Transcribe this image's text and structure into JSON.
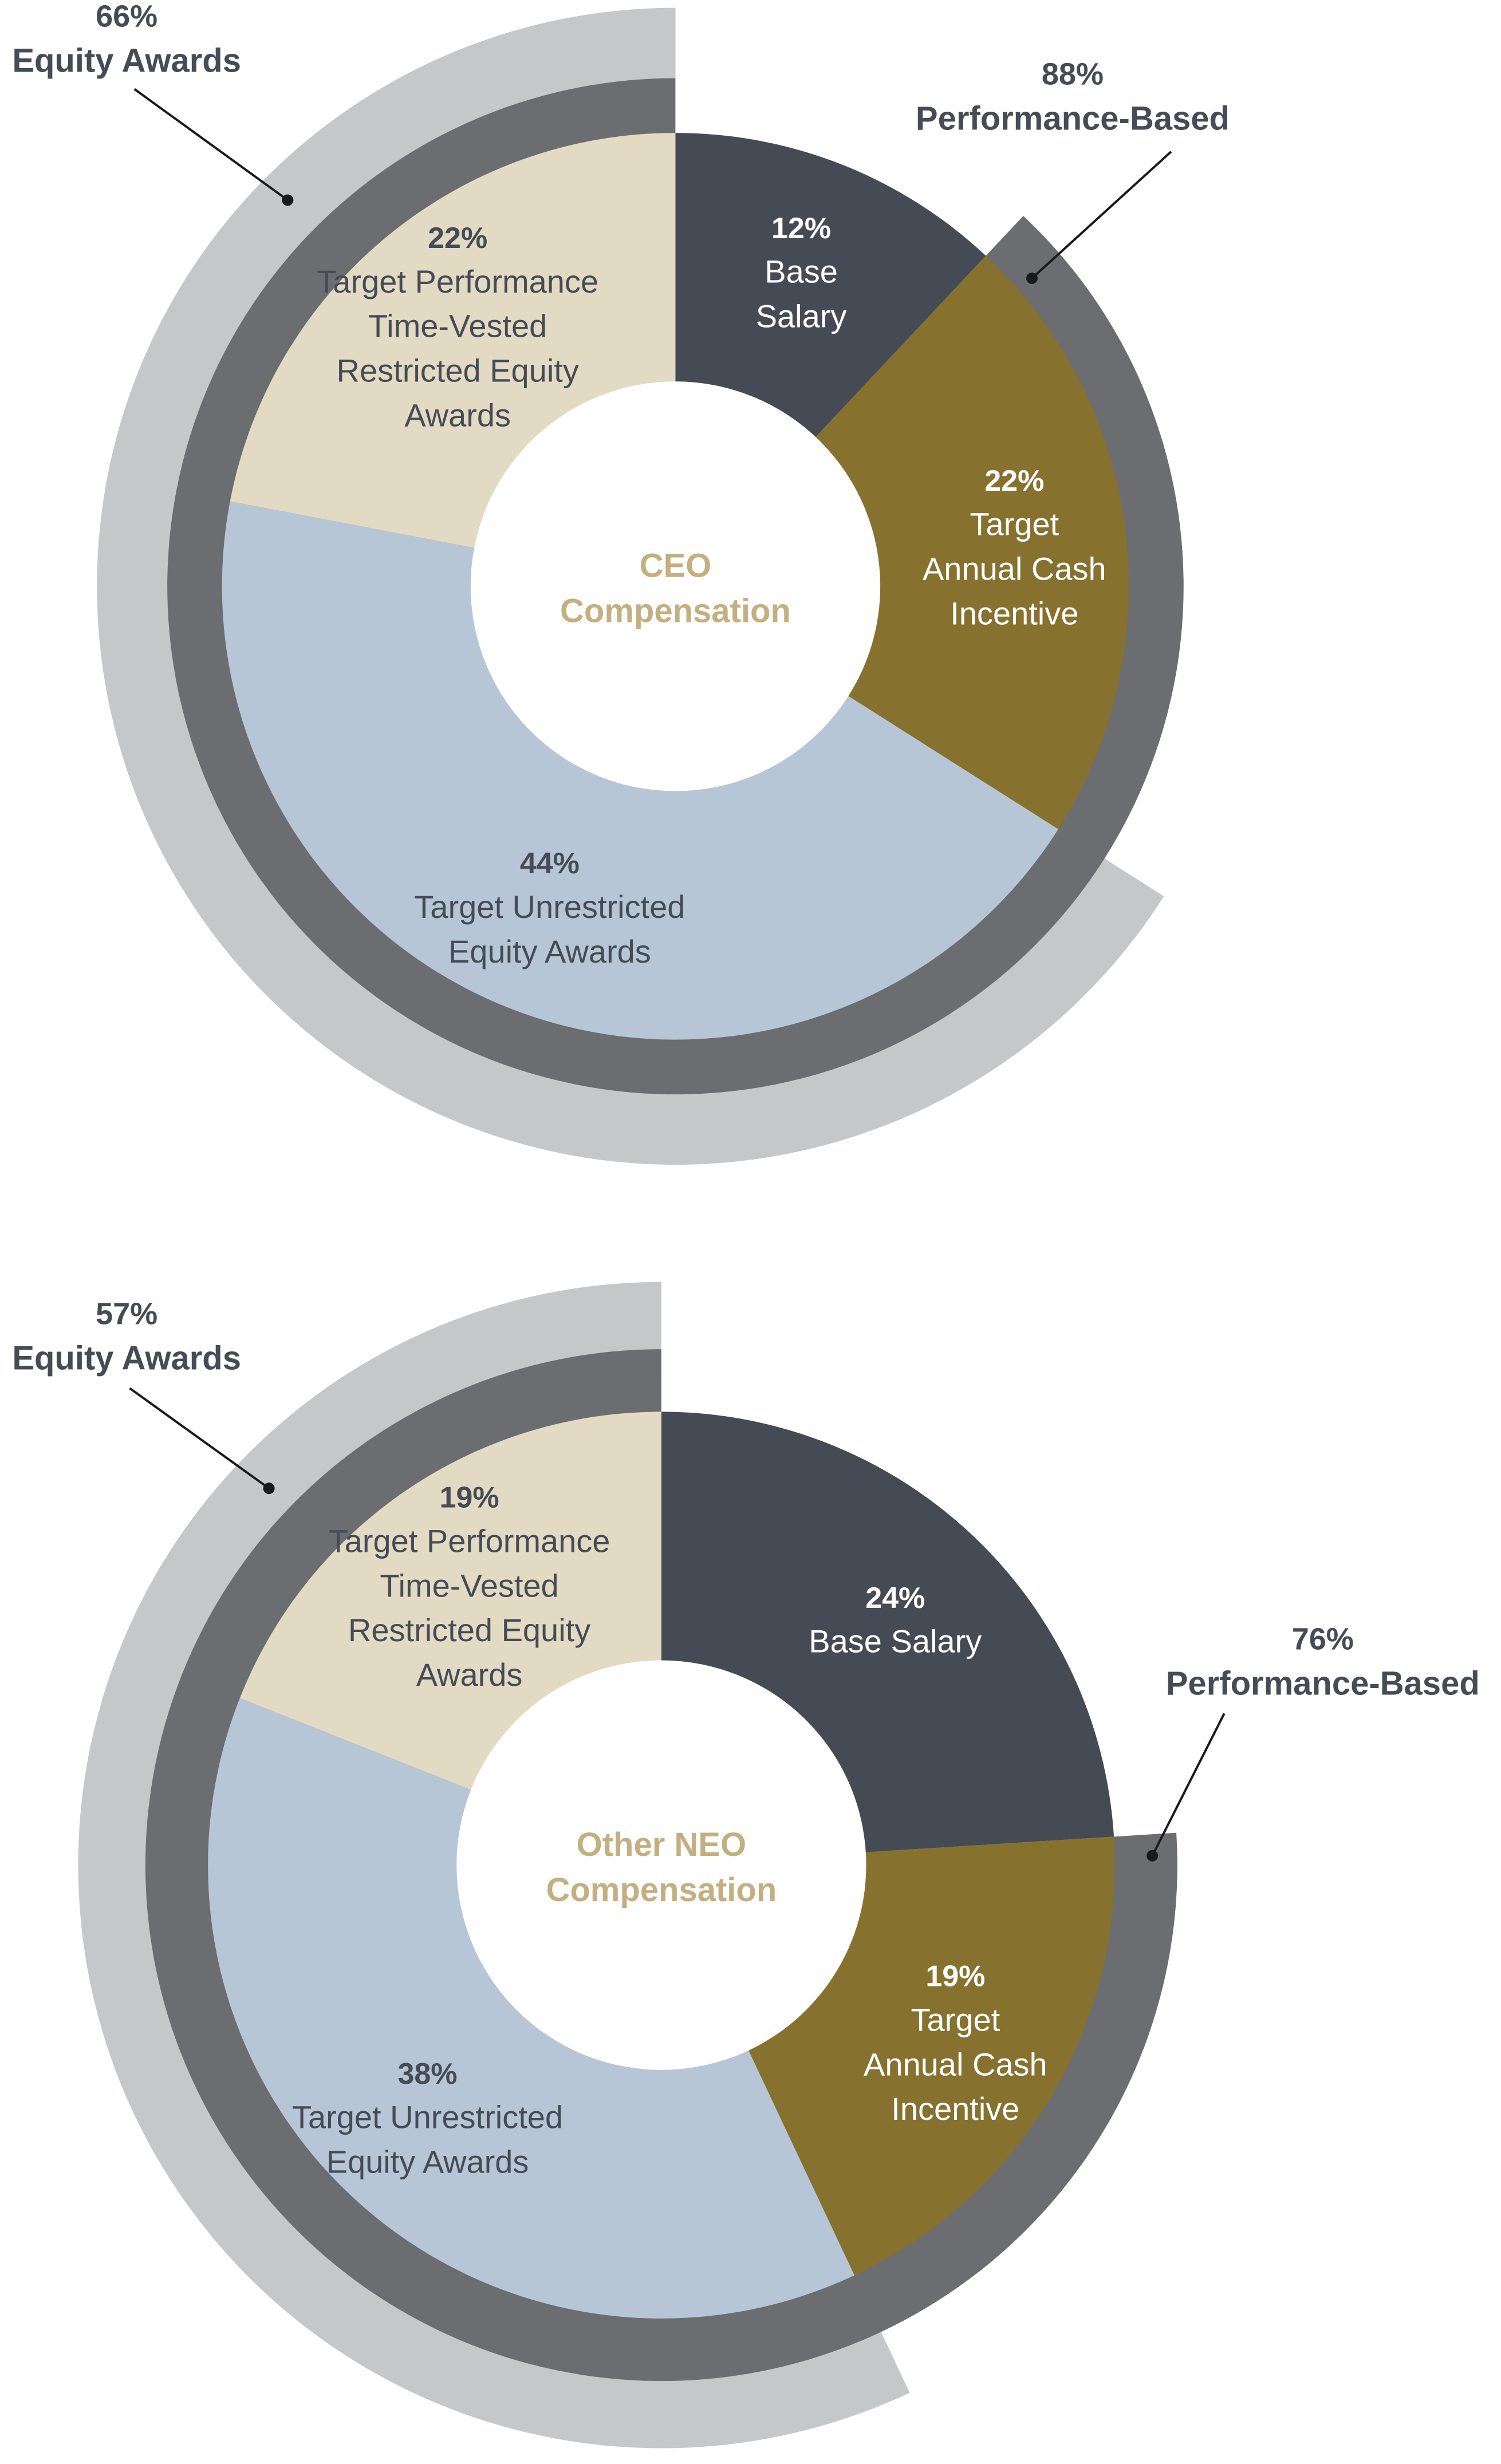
{
  "chart_data": [
    {
      "type": "pie",
      "center_label": [
        "CEO",
        "Compensation"
      ],
      "slices": [
        {
          "value": 12,
          "pct_label": "12%",
          "label_lines": [
            "Base",
            "Salary"
          ],
          "color": "#444b54",
          "text_color": "#ffffff"
        },
        {
          "value": 22,
          "pct_label": "22%",
          "label_lines": [
            "Target",
            "Annual Cash",
            "Incentive"
          ],
          "color": "#86712f",
          "text_color": "#ffffff"
        },
        {
          "value": 44,
          "pct_label": "44%",
          "label_lines": [
            "Target Unrestricted",
            "Equity Awards"
          ],
          "color": "#b7c6d6",
          "text_color": "#454c55"
        },
        {
          "value": 22,
          "pct_label": "22%",
          "label_lines": [
            "Target Performance",
            "Time-Vested",
            "Restricted Equity",
            "Awards"
          ],
          "color": "#e3dac4",
          "text_color": "#454c55"
        }
      ],
      "outer_rings": [
        {
          "name": "Performance-Based",
          "value": 88,
          "pct_label": "88%",
          "label": "Performance-Based",
          "color": "#6b6d71"
        },
        {
          "name": "Equity Awards",
          "value": 66,
          "pct_label": "66%",
          "label": "Equity Awards",
          "color": "#c6c7c9"
        }
      ]
    },
    {
      "type": "pie",
      "center_label": [
        "Other NEO",
        "Compensation"
      ],
      "slices": [
        {
          "value": 24,
          "pct_label": "24%",
          "label_lines": [
            "Base Salary"
          ],
          "color": "#444b54",
          "text_color": "#ffffff"
        },
        {
          "value": 19,
          "pct_label": "19%",
          "label_lines": [
            "Target",
            "Annual Cash",
            "Incentive"
          ],
          "color": "#86712f",
          "text_color": "#ffffff"
        },
        {
          "value": 38,
          "pct_label": "38%",
          "label_lines": [
            "Target Unrestricted",
            "Equity Awards"
          ],
          "color": "#b7c6d6",
          "text_color": "#454c55"
        },
        {
          "value": 19,
          "pct_label": "19%",
          "label_lines": [
            "Target Performance",
            "Time-Vested",
            "Restricted Equity",
            "Awards"
          ],
          "color": "#e3dac4",
          "text_color": "#454c55"
        }
      ],
      "outer_rings": [
        {
          "name": "Performance-Based",
          "value": 76,
          "pct_label": "76%",
          "label": "Performance-Based",
          "color": "#6b6d71"
        },
        {
          "name": "Equity Awards",
          "value": 57,
          "pct_label": "57%",
          "label": "Equity Awards",
          "color": "#c6c7c9"
        }
      ]
    }
  ],
  "colors": {
    "center_text": "#c3af7f",
    "callout_text": "#454c55",
    "leader_line": "#1a1a1a"
  }
}
